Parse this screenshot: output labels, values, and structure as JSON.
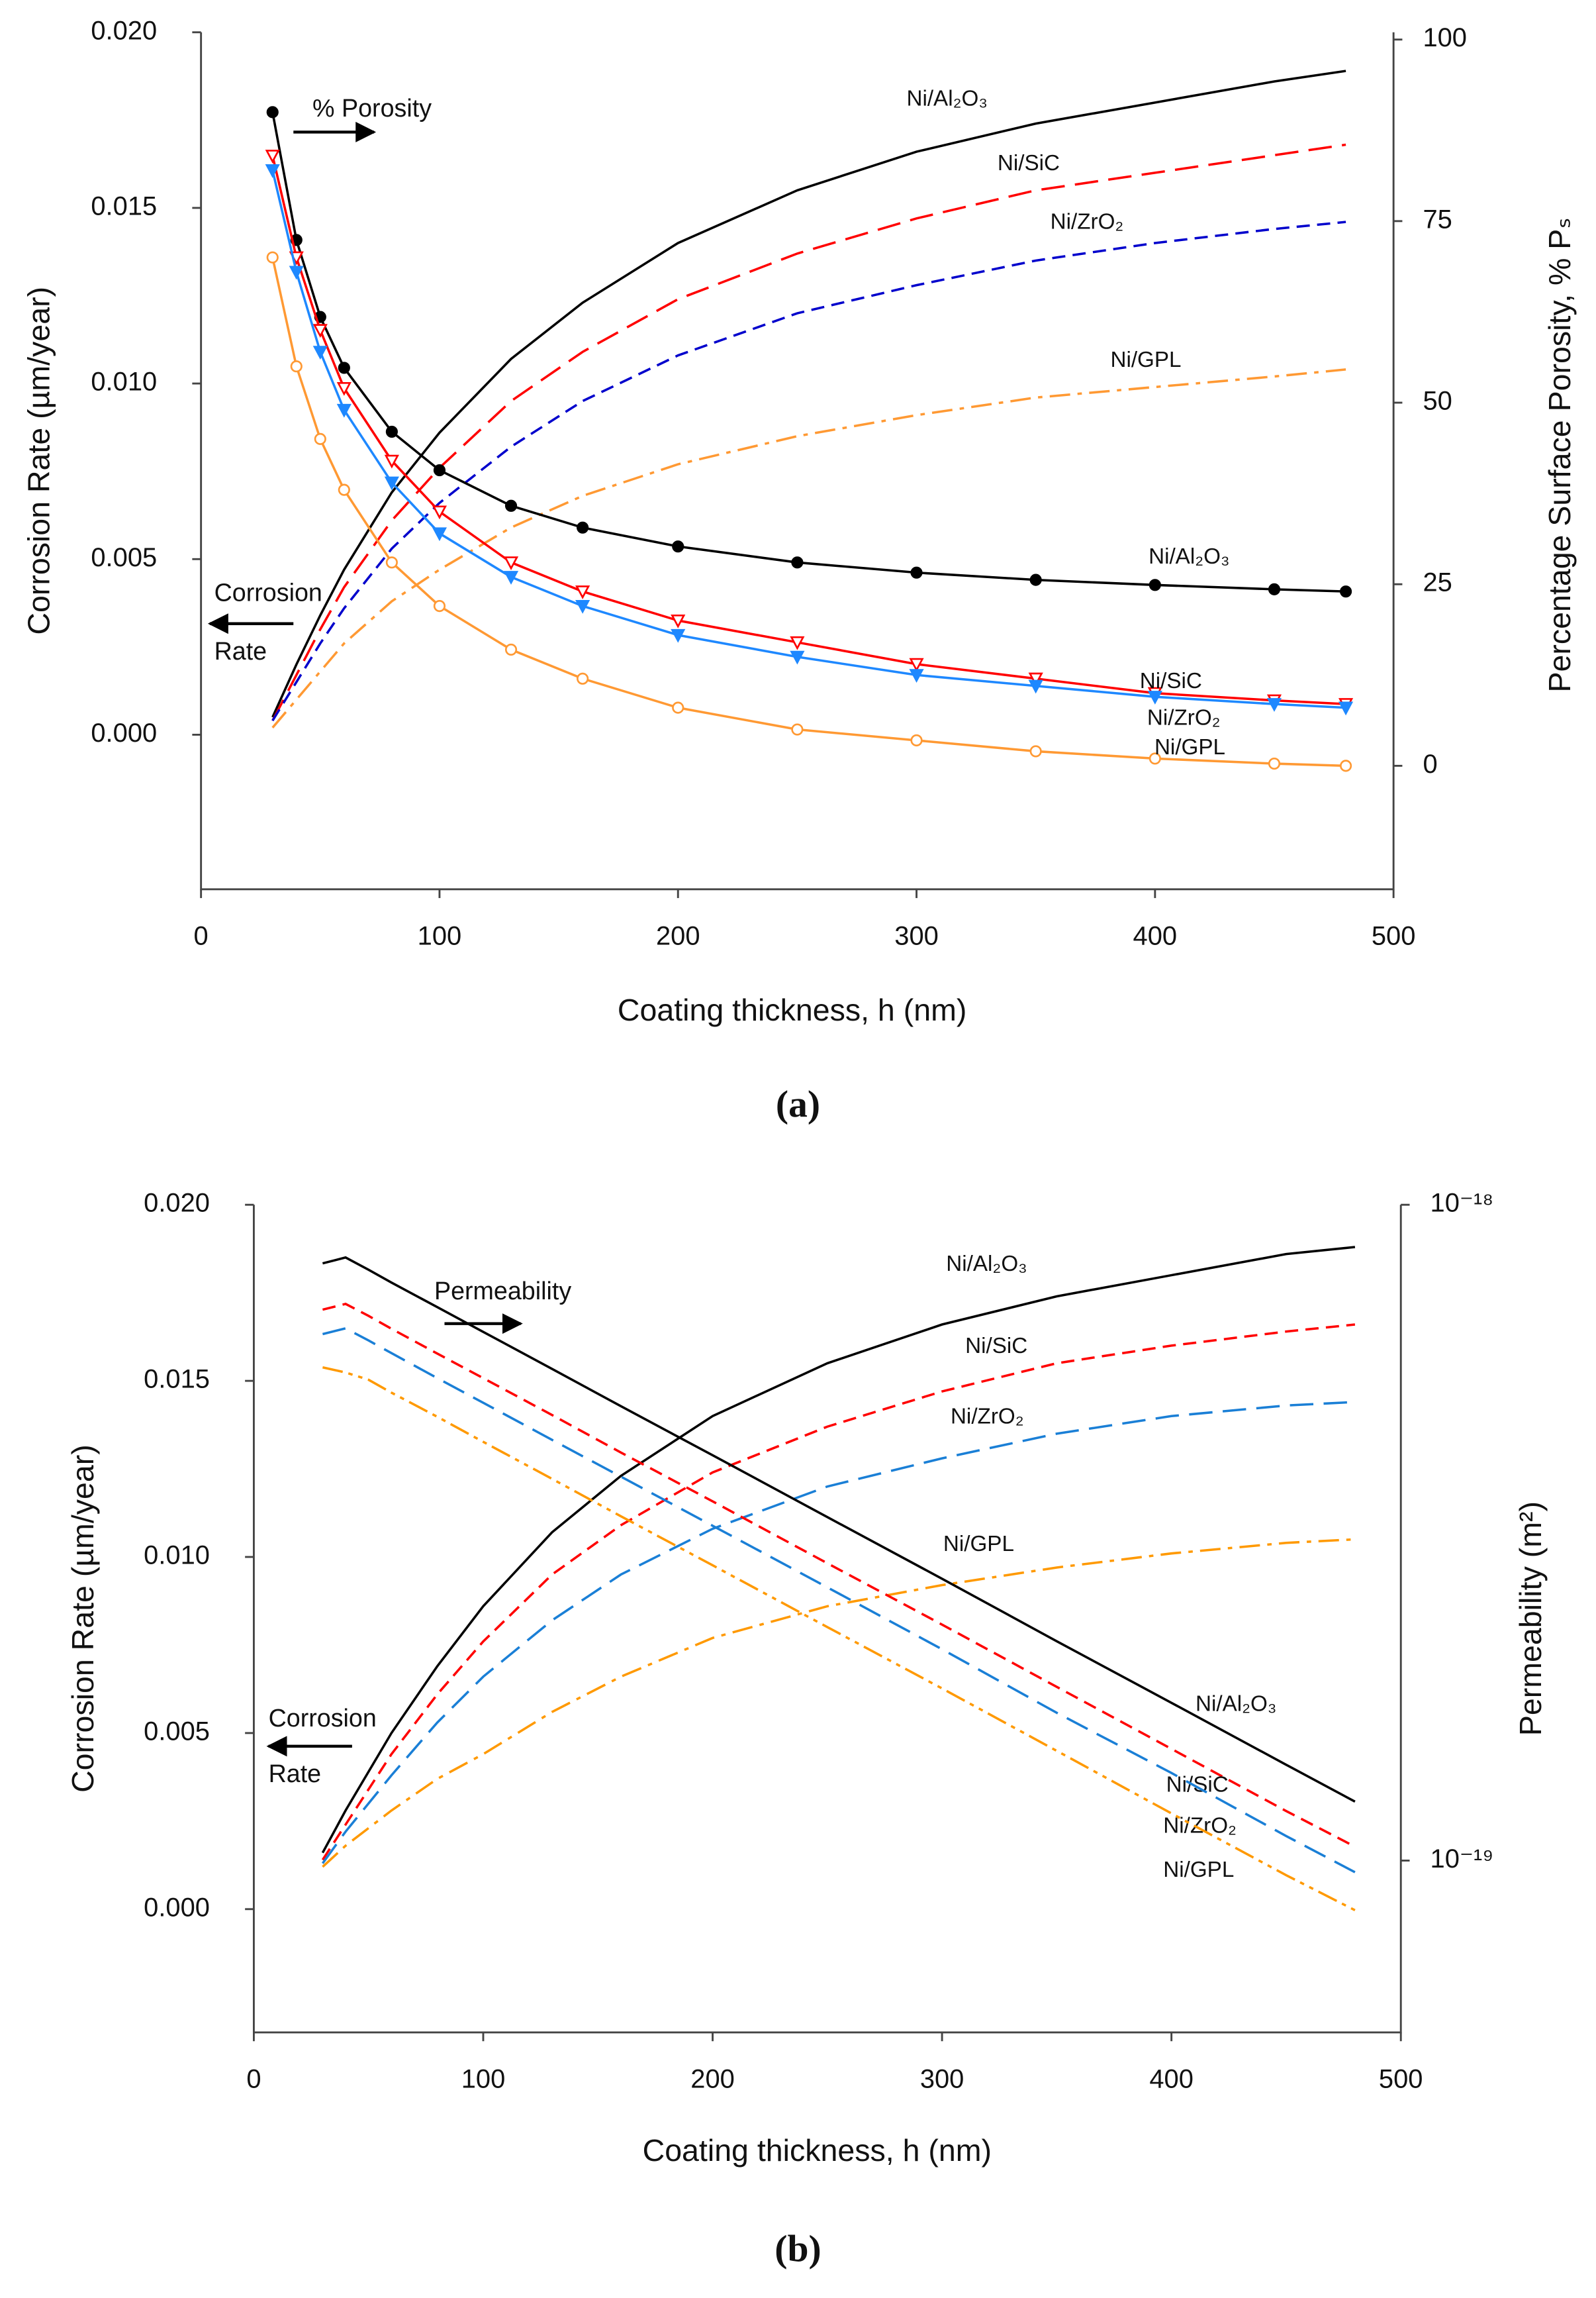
{
  "chart_data": [
    {
      "type": "line",
      "caption": "(a)",
      "xlabel": "Coating thickness, h (nm)",
      "ylabel": "Corrosion Rate (µm/year)",
      "y2label": "Percentage Surface Porosity, % Pₛ",
      "annotations": [
        "% Porosity",
        "Corrosion",
        "Rate"
      ],
      "x": [
        30,
        40,
        50,
        60,
        80,
        100,
        130,
        160,
        200,
        250,
        300,
        350,
        400,
        450,
        480
      ],
      "xlim": [
        0,
        500
      ],
      "xticks": [
        0,
        100,
        200,
        300,
        400,
        500
      ],
      "ylim": [
        -0.0044,
        0.02
      ],
      "yticks": [
        {
          "value": 0,
          "label": "0.000"
        },
        {
          "value": 0.005,
          "label": "0.005"
        },
        {
          "value": 0.01,
          "label": "0.010"
        },
        {
          "value": 0.015,
          "label": "0.015"
        },
        {
          "value": 0.02,
          "label": "0.020"
        }
      ],
      "y2lim": [
        -17,
        101
      ],
      "y2ticks": [
        0,
        25,
        50,
        75,
        100
      ],
      "y2scale": "linear",
      "series": [
        {
          "name": "Ni/Al₂O₃",
          "color": "#000000",
          "dash": "solid",
          "marker": "none",
          "axis": "y",
          "values": [
            0.0005,
            0.002,
            0.0034,
            0.0047,
            0.0069,
            0.0086,
            0.0107,
            0.0123,
            0.014,
            0.0155,
            0.0166,
            0.0174,
            0.018,
            0.0186,
            0.0189
          ]
        },
        {
          "name": "Ni/SiC",
          "color": "#ff0000",
          "dash": "long-dash",
          "marker": "none",
          "axis": "y",
          "values": [
            0.0004,
            0.0017,
            0.003,
            0.0042,
            0.0061,
            0.0076,
            0.0095,
            0.0109,
            0.0124,
            0.0137,
            0.0147,
            0.0155,
            0.016,
            0.0165,
            0.0168
          ]
        },
        {
          "name": "Ni/ZrO₂",
          "color": "#0000cc",
          "dash": "dash",
          "marker": "none",
          "axis": "y",
          "values": [
            0.0004,
            0.0015,
            0.0026,
            0.0036,
            0.0053,
            0.0066,
            0.0082,
            0.0095,
            0.0108,
            0.012,
            0.0128,
            0.0135,
            0.014,
            0.0144,
            0.0146
          ]
        },
        {
          "name": "Ni/GPL",
          "color": "#ff9933",
          "dash": "dash-dot",
          "marker": "none",
          "axis": "y",
          "values": [
            0.0002,
            0.001,
            0.0018,
            0.0026,
            0.0038,
            0.0047,
            0.0059,
            0.0068,
            0.0077,
            0.0085,
            0.0091,
            0.0096,
            0.0099,
            0.0102,
            0.0104
          ]
        },
        {
          "name": "Ni/Al₂O₃",
          "color": "#000000",
          "dash": "solid",
          "marker": "circle-filled",
          "axis": "y2",
          "values": [
            90,
            72.4,
            61.8,
            54.8,
            46,
            40.7,
            35.8,
            32.8,
            30.2,
            28,
            26.6,
            25.6,
            24.9,
            24.3,
            24
          ]
        },
        {
          "name": "Ni/SiC",
          "color": "#ff0000",
          "dash": "solid",
          "marker": "triangle-open",
          "axis": "y2",
          "values": [
            84,
            70,
            60,
            52,
            42,
            35,
            28,
            24,
            20,
            17,
            14,
            12,
            10,
            9,
            8.5
          ]
        },
        {
          "name": "Ni/ZrO₂",
          "color": "#1e88ff",
          "dash": "solid",
          "marker": "triangle-filled",
          "axis": "y2",
          "values": [
            82,
            68,
            57,
            49,
            39,
            32,
            26,
            22,
            18,
            15,
            12.5,
            11,
            9.5,
            8.5,
            8
          ]
        },
        {
          "name": "Ni/GPL",
          "color": "#ff9933",
          "dash": "solid",
          "marker": "circle-open",
          "axis": "y2",
          "values": [
            70,
            55,
            45,
            38,
            28,
            22,
            16,
            12,
            8,
            5,
            3.5,
            2,
            1,
            0.3,
            0
          ]
        }
      ]
    },
    {
      "type": "line",
      "caption": "(b)",
      "xlabel": "Coating thickness, h (nm)",
      "ylabel": "Corrosion Rate (µm/year)",
      "y2label": "Permeability (m²)",
      "annotations": [
        "Permeability",
        "Corrosion",
        "Rate"
      ],
      "x": [
        30,
        40,
        50,
        60,
        80,
        100,
        130,
        160,
        200,
        250,
        300,
        350,
        400,
        450,
        480
      ],
      "xlim": [
        0,
        500
      ],
      "xticks": [
        0,
        100,
        200,
        300,
        400,
        500
      ],
      "ylim": [
        -0.0035,
        0.02
      ],
      "yticks": [
        {
          "value": 0,
          "label": "0.000"
        },
        {
          "value": 0.005,
          "label": "0.005"
        },
        {
          "value": 0.01,
          "label": "0.010"
        },
        {
          "value": 0.015,
          "label": "0.015"
        },
        {
          "value": 0.02,
          "label": "0.020"
        }
      ],
      "y2lim": [
        5.47e-20,
        1e-18
      ],
      "y2ticks": [
        {
          "value": 1e-19,
          "label": "10⁻¹⁹"
        },
        {
          "value": 1e-18,
          "label": "10⁻¹⁸"
        }
      ],
      "y2scale": "log",
      "series": [
        {
          "name": "Ni/Al₂O₃",
          "color": "#000000",
          "dash": "solid",
          "marker": "none",
          "axis": "y",
          "values": [
            0.0016,
            0.0028,
            0.0039,
            0.005,
            0.0069,
            0.0086,
            0.0107,
            0.0123,
            0.014,
            0.0155,
            0.0166,
            0.0174,
            0.018,
            0.0186,
            0.0188
          ]
        },
        {
          "name": "Ni/SiC",
          "color": "#ff0000",
          "dash": "dash",
          "marker": "none",
          "axis": "y",
          "values": [
            0.0014,
            0.0024,
            0.0034,
            0.0044,
            0.0061,
            0.0076,
            0.0095,
            0.0109,
            0.0124,
            0.0137,
            0.0147,
            0.0155,
            0.016,
            0.0164,
            0.0166
          ]
        },
        {
          "name": "Ni/ZrO₂",
          "color": "#1a7fd6",
          "dash": "long-dash",
          "marker": "none",
          "axis": "y",
          "values": [
            0.0013,
            0.0022,
            0.003,
            0.0038,
            0.0053,
            0.0066,
            0.0082,
            0.0095,
            0.0108,
            0.012,
            0.0128,
            0.0135,
            0.014,
            0.0143,
            0.0144
          ]
        },
        {
          "name": "Ni/GPL",
          "color": "#ff9900",
          "dash": "dash-dot",
          "marker": "none",
          "axis": "y",
          "values": [
            0.0012,
            0.0018,
            0.0023,
            0.0028,
            0.0037,
            0.0044,
            0.0056,
            0.0066,
            0.0077,
            0.0086,
            0.0092,
            0.0097,
            0.0101,
            0.0104,
            0.0105
          ]
        },
        {
          "name": "Ni/Al₂O₃",
          "color": "#000000",
          "dash": "solid",
          "marker": "none",
          "axis": "y2",
          "values": [
            8.14e-19,
            8.31e-19,
            7.96e-19,
            7.61e-19,
            6.98e-19,
            6.4e-19,
            5.62e-19,
            4.93e-19,
            4.15e-19,
            3.34e-19,
            2.69e-19,
            2.16e-19,
            1.74e-19,
            1.4e-19,
            1.23e-19
          ]
        },
        {
          "name": "Ni/SiC",
          "color": "#ff0000",
          "dash": "dash",
          "marker": "none",
          "axis": "y2",
          "values": [
            6.92e-19,
            7.06e-19,
            6.77e-19,
            6.47e-19,
            5.93e-19,
            5.44e-19,
            4.78e-19,
            4.19e-19,
            3.53e-19,
            2.84e-19,
            2.29e-19,
            1.84e-19,
            1.48e-19,
            1.19e-19,
            1.05e-19
          ]
        },
        {
          "name": "Ni/ZrO₂",
          "color": "#1a7fd6",
          "dash": "long-dash",
          "marker": "none",
          "axis": "y2",
          "values": [
            6.35e-19,
            6.48e-19,
            6.21e-19,
            5.94e-19,
            5.44e-19,
            4.99e-19,
            4.38e-19,
            3.85e-19,
            3.24e-19,
            2.61e-19,
            2.1e-19,
            1.68e-19,
            1.36e-19,
            1.09e-19,
            9.6e-20
          ]
        },
        {
          "name": "Ni/GPL",
          "color": "#ff9900",
          "dash": "dash-dot-dot",
          "marker": "none",
          "axis": "y2",
          "values": [
            5.65e-19,
            5.55e-19,
            5.41e-19,
            5.17e-19,
            4.75e-19,
            4.35e-19,
            3.82e-19,
            3.35e-19,
            2.82e-19,
            2.27e-19,
            1.83e-19,
            1.47e-19,
            1.18e-19,
            9.5e-20,
            8.4e-20
          ]
        }
      ]
    }
  ]
}
